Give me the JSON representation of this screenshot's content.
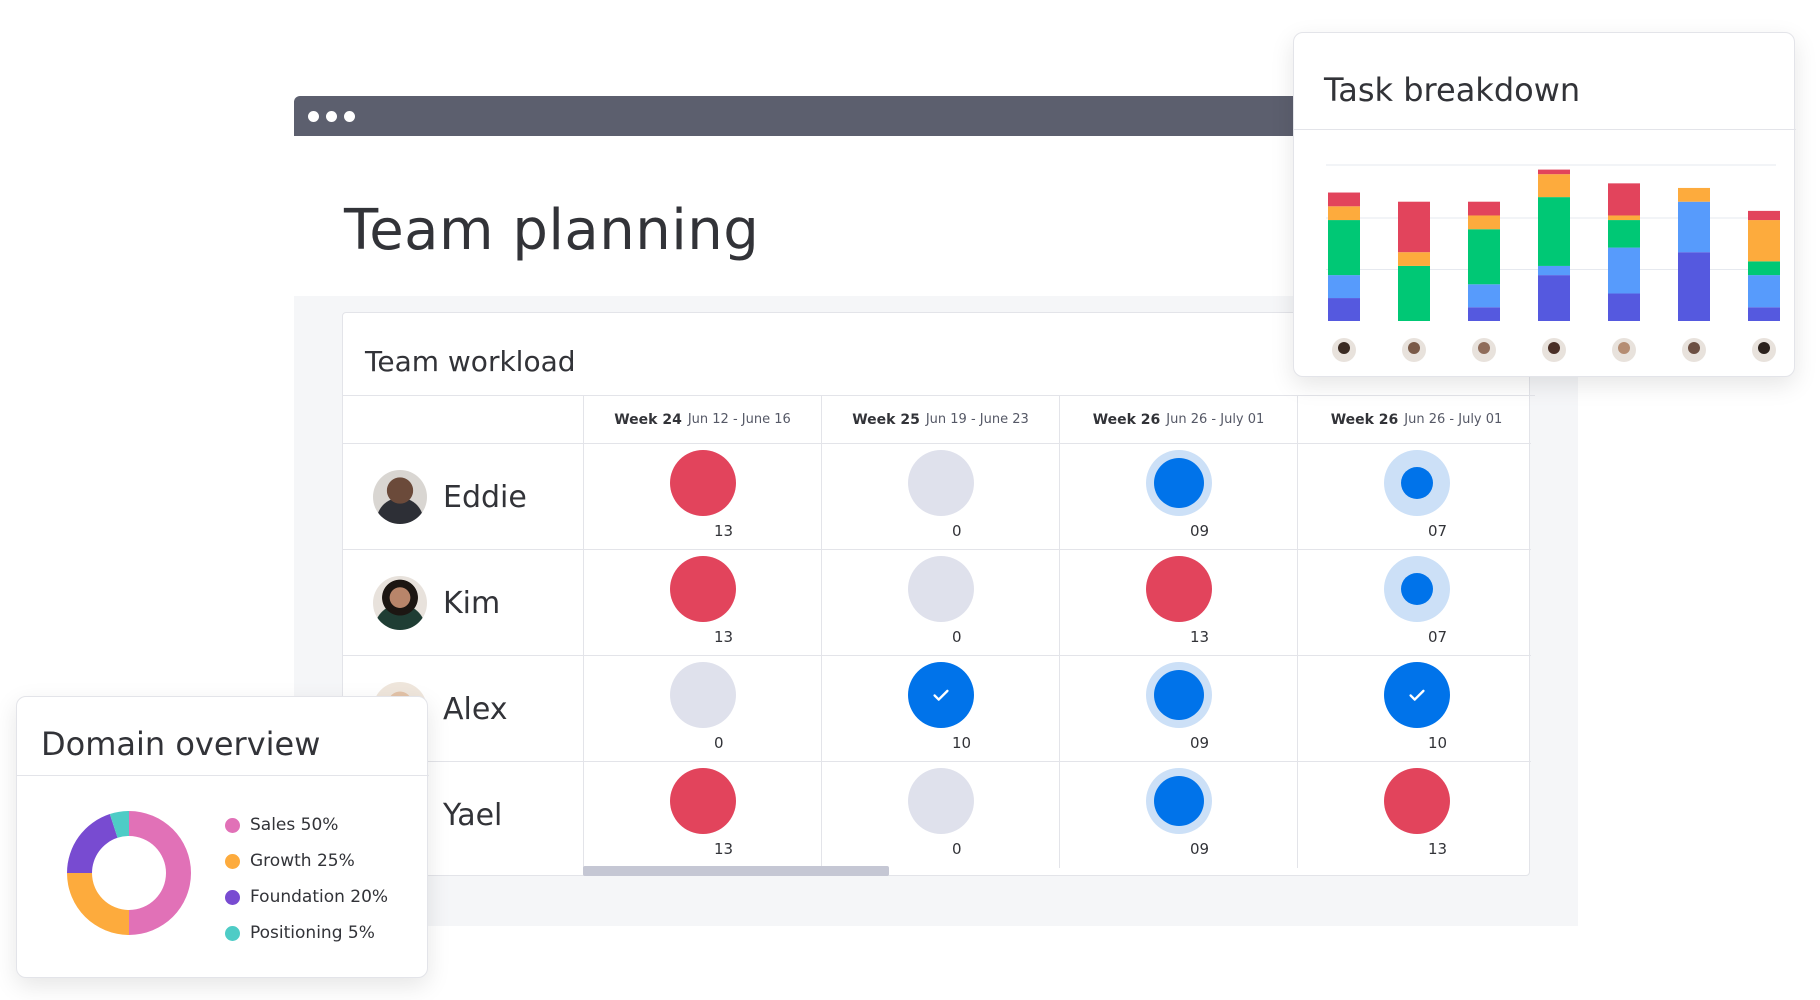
{
  "page": {
    "title": "Team planning"
  },
  "workload": {
    "title": "Team workload",
    "weeks": [
      {
        "label": "Week 24",
        "range": "Jun 12 - June 16"
      },
      {
        "label": "Week 25",
        "range": "Jun 19 - June 23"
      },
      {
        "label": "Week 26",
        "range": "Jun 26 - July 01"
      },
      {
        "label": "Week 26",
        "range": "Jun 26 - July 01"
      }
    ],
    "rows": [
      {
        "name": "Eddie",
        "cells": [
          {
            "status": "over",
            "count": "13"
          },
          {
            "status": "empty",
            "count": "0"
          },
          {
            "status": "high",
            "count": "09"
          },
          {
            "status": "medium",
            "count": "07"
          }
        ]
      },
      {
        "name": "Kim",
        "cells": [
          {
            "status": "over",
            "count": "13"
          },
          {
            "status": "empty",
            "count": "0"
          },
          {
            "status": "over",
            "count": "13"
          },
          {
            "status": "medium",
            "count": "07"
          }
        ]
      },
      {
        "name": "Alex",
        "cells": [
          {
            "status": "empty",
            "count": "0"
          },
          {
            "status": "done",
            "count": "10"
          },
          {
            "status": "high",
            "count": "09"
          },
          {
            "status": "done",
            "count": "10"
          }
        ]
      },
      {
        "name": "Yael",
        "cells": [
          {
            "status": "over",
            "count": "13"
          },
          {
            "status": "empty",
            "count": "0"
          },
          {
            "status": "high",
            "count": "09"
          },
          {
            "status": "over",
            "count": "13"
          }
        ]
      }
    ],
    "colors": {
      "over": "#e2445c",
      "empty": "#dfe1ec",
      "blue": "#0073ea",
      "ring": "#cce0f7"
    }
  },
  "task_breakdown": {
    "title": "Task breakdown",
    "colors": [
      "#5559df",
      "#579bfc",
      "#00c875",
      "#fdab3d",
      "#e2445c"
    ],
    "chart_data": {
      "type": "bar",
      "stacked": true,
      "bars": [
        [
          2.5,
          2.5,
          6,
          1.5,
          1.5
        ],
        [
          0,
          0,
          6,
          1.5,
          5.5
        ],
        [
          1.5,
          2.5,
          6,
          1.5,
          1.5
        ],
        [
          5,
          1,
          7.5,
          2.5,
          0.5
        ],
        [
          3,
          5,
          3,
          0.5,
          3.5
        ],
        [
          7.5,
          5.5,
          0,
          1.5,
          0
        ],
        [
          1.5,
          3.5,
          1.5,
          4.5,
          1
        ]
      ],
      "ylim": [
        0,
        17
      ],
      "grid": true
    }
  },
  "domain": {
    "title": "Domain overview",
    "chart_data": {
      "type": "pie",
      "labels": [
        "Sales 50%",
        "Growth 25%",
        "Foundation 20%",
        "Positioning 5%"
      ],
      "values": [
        50,
        25,
        20,
        5
      ],
      "colors": [
        "#e171b7",
        "#fdab3d",
        "#784bd1",
        "#4eccc6"
      ]
    }
  }
}
